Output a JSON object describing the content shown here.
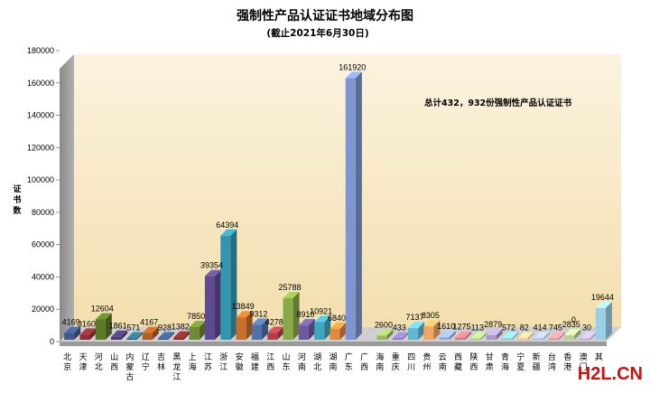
{
  "chart_data": {
    "type": "bar",
    "title": "强制性产品认证证书地域分布图",
    "subtitle": "(截止2021年6月30日)",
    "ylabel": "证书数",
    "xlabel": "",
    "ylim": [
      0,
      180000
    ],
    "yticks": [
      0,
      20000,
      40000,
      60000,
      80000,
      100000,
      120000,
      140000,
      160000,
      180000
    ],
    "grid": false,
    "annotation": "总计432，932份强制性产品认证证书",
    "categories": [
      "北京",
      "天津",
      "河北",
      "山西",
      "内蒙古",
      "辽宁",
      "吉林",
      "黑龙江",
      "上海",
      "江苏",
      "浙江",
      "安徽",
      "福建",
      "江西",
      "山东",
      "河南",
      "湖北",
      "湖南",
      "广东",
      "广西",
      "海南",
      "重庆",
      "四川",
      "贵州",
      "云南",
      "西藏",
      "陕西",
      "甘肃",
      "青海",
      "宁夏",
      "新疆",
      "台湾",
      "香港",
      "澳门",
      "其"
    ],
    "values": [
      4169,
      3160,
      12604,
      1861,
      571,
      4167,
      928,
      1382,
      7850,
      39354,
      64394,
      13849,
      9312,
      4278,
      25788,
      8910,
      10921,
      6840,
      161920,
      null,
      2600,
      433,
      7137,
      8305,
      1610,
      1275,
      113,
      2879,
      572,
      82,
      414,
      745,
      2835,
      30,
      19644
    ],
    "value_labels": [
      "4169",
      "3160",
      "12604",
      "1861",
      "571",
      "4167",
      "928",
      "1382",
      "7850",
      "39354",
      "64394",
      "13849",
      "9312",
      "4278",
      "25788",
      "8910",
      "10921",
      "6840",
      "161920",
      "",
      "2600",
      "433",
      "7137",
      "8305",
      "1610",
      "1275",
      "113",
      "2879",
      "572",
      "82",
      "414",
      "745",
      "2835",
      "30",
      "19644"
    ]
  },
  "extra_label": "0",
  "colors": [
    "#3e5a8a",
    "#8e2e35",
    "#5c7a2a",
    "#4a3a78",
    "#2e6f86",
    "#b35e22",
    "#3c5a8c",
    "#8c2a30",
    "#6f8a34",
    "#5e4a8e",
    "#3296b0",
    "#c8702a",
    "#5072a8",
    "#b04048",
    "#8aaa48",
    "#6e5aa0",
    "#40a6c0",
    "#e08a3a",
    "#7d95d0",
    "#c25860",
    "#9ab868",
    "#8878b8",
    "#60b8d0",
    "#f0a860",
    "#90a8e0",
    "#d07880",
    "#a8c880",
    "#a898c8",
    "#80c8e0",
    "#f8c088",
    "#a8b8e8",
    "#d89098",
    "#b8d098",
    "#b8a8d8",
    "#9ad0e6"
  ],
  "watermark": "H2L.CN"
}
